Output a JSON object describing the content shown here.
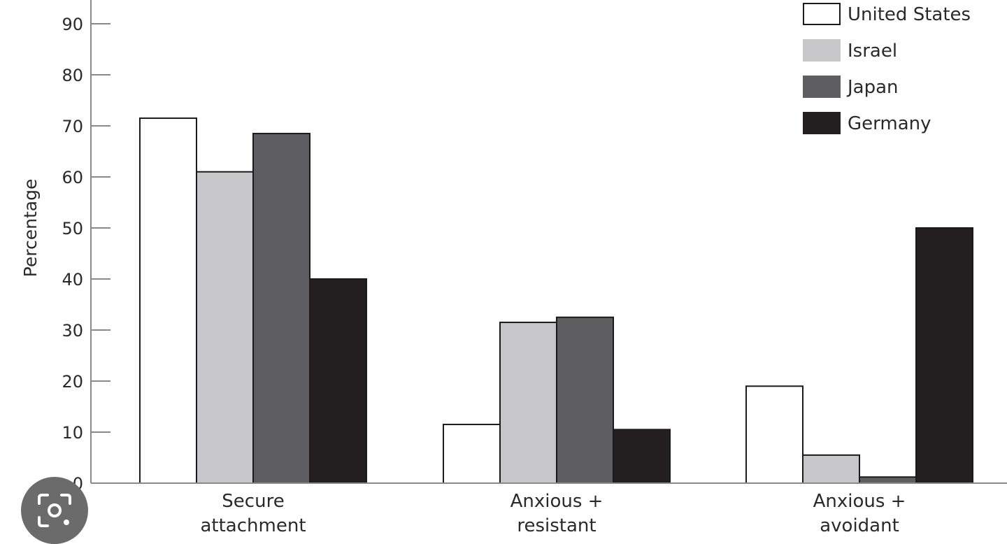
{
  "chart_data": {
    "type": "bar",
    "title": "",
    "xlabel": "",
    "ylabel": "Percentage",
    "ylim": [
      0,
      95
    ],
    "yticks": [
      0,
      10,
      20,
      30,
      40,
      50,
      60,
      70,
      80,
      90
    ],
    "grid": false,
    "legend_position": "top-right",
    "categories": [
      [
        "Secure",
        "attachment"
      ],
      [
        "Anxious +",
        "resistant"
      ],
      [
        "Anxious +",
        "avoidant"
      ]
    ],
    "series": [
      {
        "name": "United States",
        "color": "#ffffff",
        "values": [
          71.5,
          11.5,
          19
        ]
      },
      {
        "name": "Israel",
        "color": "#c7c7c9",
        "values": [
          61,
          31.5,
          5.5
        ]
      },
      {
        "name": "Japan",
        "color": "#5e5e60",
        "values": [
          68.5,
          32.5,
          1.2
        ]
      },
      {
        "name": "Germany",
        "color": "#231f20",
        "values": [
          40,
          10.5,
          50
        ]
      }
    ]
  },
  "overlay": {
    "lens_icon": "lens-scan-icon"
  }
}
